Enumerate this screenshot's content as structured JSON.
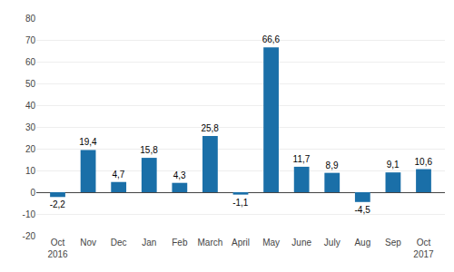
{
  "chart_data": {
    "type": "bar",
    "categories": [
      "Oct\n2016",
      "Nov",
      "Dec",
      "Jan",
      "Feb",
      "March",
      "April",
      "May",
      "June",
      "July",
      "Aug",
      "Sep",
      "Oct\n2017"
    ],
    "values": [
      -2.2,
      19.4,
      4.7,
      15.8,
      4.3,
      25.8,
      -1.1,
      66.6,
      11.7,
      8.9,
      -4.5,
      9.1,
      10.6
    ],
    "value_labels": [
      "-2,2",
      "19,4",
      "4,7",
      "15,8",
      "4,3",
      "25,8",
      "-1,1",
      "66,6",
      "11,7",
      "8,9",
      "-4,5",
      "9,1",
      "10,6"
    ],
    "data_labels": true,
    "color": "#1a6fa8",
    "ylim": [
      -20,
      80
    ],
    "yticks": [
      -20,
      -10,
      0,
      10,
      20,
      30,
      40,
      50,
      60,
      70,
      80
    ],
    "grid": true
  }
}
